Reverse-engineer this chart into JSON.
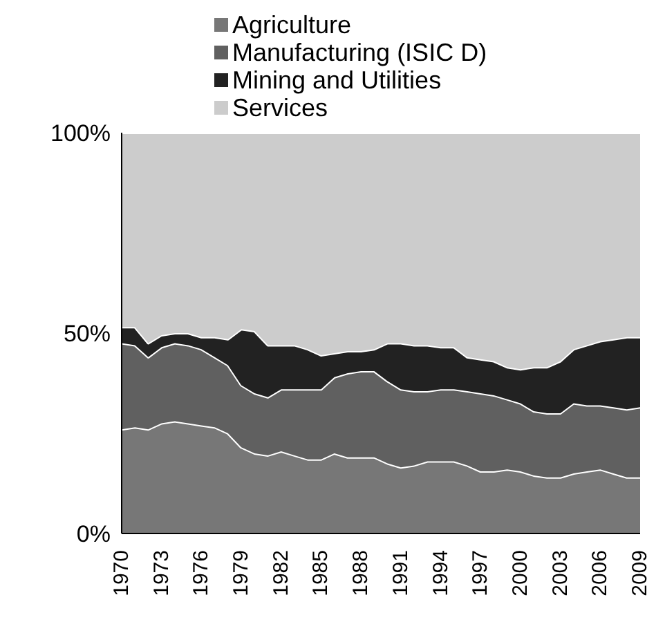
{
  "chart_data": {
    "type": "area",
    "stacked": true,
    "legend": "top",
    "grid": false,
    "categories": [
      "1970",
      null,
      null,
      "1973",
      null,
      null,
      "1976",
      null,
      null,
      "1979",
      null,
      null,
      "1982",
      null,
      null,
      "1985",
      null,
      null,
      "1988",
      null,
      null,
      "1991",
      null,
      null,
      "1994",
      null,
      null,
      "1997",
      null,
      null,
      "2000",
      null,
      null,
      "2003",
      null,
      null,
      "2006",
      null,
      null,
      "2009"
    ],
    "ylim": [
      0,
      100
    ],
    "yticks": [
      {
        "value": 0,
        "label": "0%"
      },
      {
        "value": 50,
        "label": "50%"
      },
      {
        "value": 100,
        "label": "100%"
      }
    ],
    "series": [
      {
        "name": "Agriculture",
        "color": "#777777",
        "values": [
          26,
          26.5,
          26,
          27.5,
          28,
          27.5,
          27,
          26.5,
          25,
          21.5,
          20,
          19.5,
          20.5,
          19.5,
          18.5,
          18.5,
          20,
          19,
          19,
          19,
          17.5,
          16.5,
          17,
          18,
          18,
          18,
          17,
          15.5,
          15.5,
          16,
          15.5,
          14.5,
          14,
          14,
          15,
          15.5,
          16,
          15,
          14,
          14
        ]
      },
      {
        "name": "Manufacturing (ISIC D)",
        "color": "#606060",
        "values": [
          21.5,
          20.5,
          18,
          19,
          19.5,
          19.5,
          19,
          17.5,
          17,
          15.5,
          15,
          14.5,
          15.5,
          16.5,
          17.5,
          17.5,
          19,
          21,
          21.5,
          21.5,
          20.5,
          19.5,
          18.5,
          17.5,
          18,
          18,
          18.5,
          19.5,
          19,
          17.5,
          17,
          16,
          16,
          16,
          17.5,
          16.5,
          16,
          16.5,
          17,
          17.5
        ]
      },
      {
        "name": "Mining and Utilities",
        "color": "#222222",
        "values": [
          4,
          4.5,
          3.5,
          3,
          2.5,
          3,
          3,
          5,
          6.5,
          14,
          15.5,
          13,
          11,
          11,
          10,
          8.5,
          6,
          5.5,
          5,
          5.5,
          9.5,
          11.5,
          11.5,
          11.5,
          10.5,
          10.5,
          8.5,
          8.5,
          8.5,
          8,
          8.5,
          11,
          11.5,
          13,
          13.5,
          15,
          16,
          17,
          18,
          17.5
        ]
      },
      {
        "name": "Services",
        "color": "#cccccc",
        "values": [
          48.5,
          48.5,
          52.5,
          50.5,
          50,
          50,
          51,
          51,
          51.5,
          49,
          49.5,
          53,
          53,
          53,
          54,
          55.5,
          55,
          54.5,
          54.5,
          54,
          52.5,
          52.5,
          53,
          53,
          53.5,
          53.5,
          56,
          56.5,
          57,
          58.5,
          59,
          58.5,
          58.5,
          57,
          54,
          53,
          52,
          51.5,
          51,
          51
        ]
      }
    ]
  }
}
